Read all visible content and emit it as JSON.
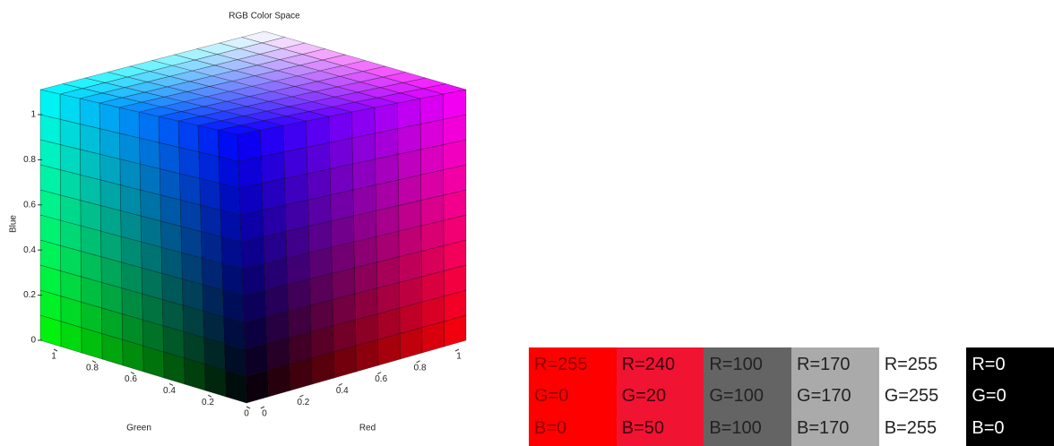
{
  "figure": {
    "title": "RGB Color Space",
    "zlabel": "Blue",
    "xlabel": "Green",
    "ylabel": "Red",
    "blue_ticks": [
      0,
      0.2,
      0.4,
      0.6,
      0.8,
      1
    ],
    "green_ticks": [
      1,
      0.8,
      0.6,
      0.4,
      0.2,
      0
    ],
    "red_ticks": [
      0,
      0.2,
      0.4,
      0.6,
      0.8,
      1
    ]
  },
  "swatches": [
    {
      "color": "#ff0000",
      "text_color": "#8b0000",
      "lines": [
        "R=255",
        "G=0",
        "B=0"
      ]
    },
    {
      "color": "#f01432",
      "text_color": "#3a0010",
      "lines": [
        "R=240",
        "G=20",
        "B=50"
      ]
    },
    {
      "color": "#646464",
      "text_color": "#222222",
      "lines": [
        "R=100",
        "G=100",
        "B=100"
      ]
    },
    {
      "color": "#aaaaaa",
      "text_color": "#222222",
      "lines": [
        "R=170",
        "G=170",
        "B=170"
      ]
    },
    {
      "color": "#ffffff",
      "text_color": "#222222",
      "lines": [
        "R=255",
        "G=255",
        "B=255"
      ]
    },
    {
      "color": "#000000",
      "text_color": "#ffffff",
      "lines": [
        "R=0",
        "G=0",
        "B=0"
      ]
    }
  ]
}
